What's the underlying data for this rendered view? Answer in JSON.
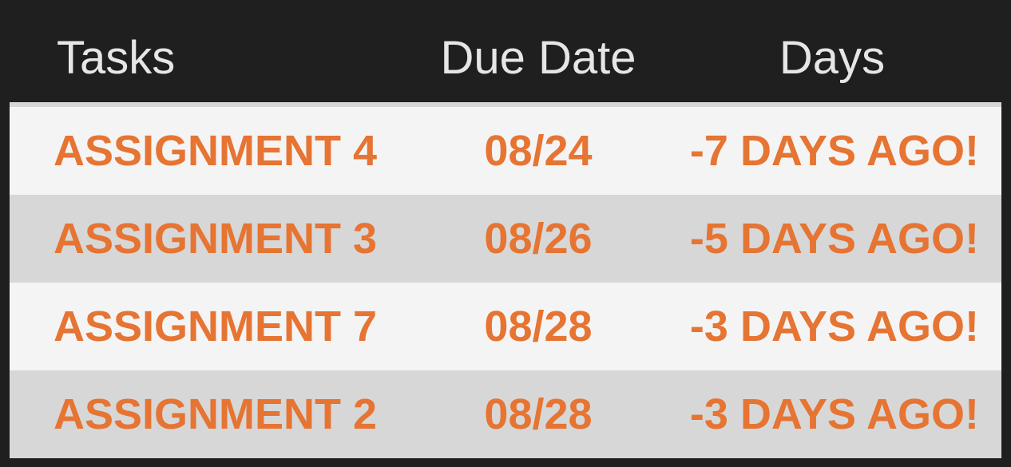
{
  "header": {
    "tasks_label": "Tasks",
    "due_date_label": "Due Date",
    "days_label": "Days"
  },
  "rows": [
    {
      "task": "ASSIGNMENT 4",
      "due": "08/24",
      "days": "-7 DAYS AGO!"
    },
    {
      "task": "ASSIGNMENT 3",
      "due": "08/26",
      "days": "-5 DAYS AGO!"
    },
    {
      "task": "ASSIGNMENT 7",
      "due": "08/28",
      "days": "-3 DAYS AGO!"
    },
    {
      "task": "ASSIGNMENT 2",
      "due": "08/28",
      "days": "-3 DAYS AGO!"
    }
  ],
  "colors": {
    "background": "#1f1f1f",
    "header_text": "#e6e6e6",
    "row_light": "#f4f4f4",
    "row_dark": "#d7d7d7",
    "accent_text": "#e67432"
  }
}
